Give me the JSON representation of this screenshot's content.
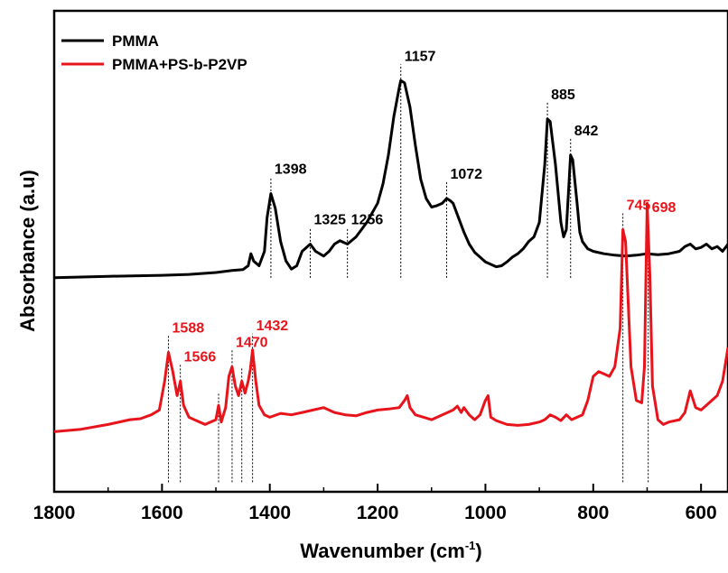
{
  "chart_data": {
    "type": "line",
    "title": "",
    "xlabel": "Wavenumber (cm",
    "xlabel_sup": "-1",
    "xlabel_close": ")",
    "ylabel": "Absorbance (a.u)",
    "xlim": [
      1800,
      550
    ],
    "x_reversed": true,
    "ylim": [
      0,
      1
    ],
    "y_ticks_labeled": false,
    "legend_position": "top-left",
    "x_ticks": [
      "1800",
      "1600",
      "1400",
      "1200",
      "1000",
      "800",
      "600"
    ],
    "x_tick_values": [
      1800,
      1600,
      1400,
      1200,
      1000,
      800,
      600
    ],
    "series": [
      {
        "name": "PMMA",
        "color": "#000000",
        "x": [
          1800,
          1700,
          1600,
          1550,
          1500,
          1470,
          1450,
          1440,
          1435,
          1430,
          1420,
          1410,
          1405,
          1398,
          1390,
          1380,
          1370,
          1360,
          1350,
          1340,
          1325,
          1315,
          1300,
          1290,
          1280,
          1270,
          1256,
          1240,
          1220,
          1200,
          1190,
          1180,
          1170,
          1160,
          1157,
          1150,
          1140,
          1130,
          1120,
          1110,
          1100,
          1090,
          1080,
          1072,
          1065,
          1060,
          1050,
          1040,
          1030,
          1020,
          1000,
          980,
          970,
          960,
          950,
          940,
          930,
          920,
          910,
          900,
          890,
          885,
          880,
          870,
          860,
          855,
          850,
          845,
          842,
          838,
          830,
          825,
          820,
          810,
          800,
          780,
          760,
          740,
          720,
          700,
          680,
          660,
          640,
          630,
          620,
          610,
          600,
          590,
          580,
          570,
          560,
          550
        ],
        "y": [
          0.445,
          0.448,
          0.45,
          0.452,
          0.456,
          0.46,
          0.462,
          0.47,
          0.495,
          0.48,
          0.47,
          0.5,
          0.57,
          0.62,
          0.59,
          0.52,
          0.48,
          0.463,
          0.47,
          0.5,
          0.515,
          0.5,
          0.49,
          0.5,
          0.515,
          0.522,
          0.515,
          0.53,
          0.56,
          0.6,
          0.64,
          0.7,
          0.78,
          0.84,
          0.855,
          0.85,
          0.8,
          0.72,
          0.65,
          0.61,
          0.592,
          0.595,
          0.6,
          0.61,
          0.605,
          0.6,
          0.57,
          0.54,
          0.515,
          0.498,
          0.478,
          0.468,
          0.47,
          0.478,
          0.488,
          0.495,
          0.505,
          0.52,
          0.53,
          0.56,
          0.68,
          0.775,
          0.77,
          0.68,
          0.56,
          0.53,
          0.545,
          0.64,
          0.7,
          0.69,
          0.6,
          0.54,
          0.52,
          0.505,
          0.5,
          0.495,
          0.492,
          0.49,
          0.492,
          0.495,
          0.493,
          0.495,
          0.5,
          0.51,
          0.515,
          0.505,
          0.508,
          0.515,
          0.505,
          0.51,
          0.5,
          0.515
        ]
      },
      {
        "name": "PMMA+PS-b-P2VP",
        "color": "#e8141c",
        "x": [
          1800,
          1750,
          1700,
          1660,
          1640,
          1620,
          1605,
          1595,
          1588,
          1580,
          1572,
          1566,
          1560,
          1550,
          1540,
          1520,
          1500,
          1495,
          1490,
          1482,
          1476,
          1470,
          1464,
          1458,
          1452,
          1446,
          1440,
          1436,
          1432,
          1426,
          1420,
          1410,
          1400,
          1380,
          1360,
          1340,
          1320,
          1300,
          1280,
          1260,
          1240,
          1220,
          1200,
          1180,
          1160,
          1150,
          1145,
          1140,
          1130,
          1100,
          1080,
          1060,
          1052,
          1045,
          1040,
          1030,
          1020,
          1010,
          1000,
          995,
          990,
          980,
          960,
          940,
          920,
          900,
          890,
          880,
          870,
          860,
          850,
          840,
          830,
          820,
          810,
          800,
          790,
          780,
          770,
          760,
          750,
          745,
          740,
          730,
          720,
          710,
          705,
          700,
          695,
          690,
          680,
          670,
          660,
          640,
          630,
          620,
          610,
          600,
          590,
          580,
          570,
          560,
          550
        ],
        "y": [
          0.125,
          0.13,
          0.14,
          0.15,
          0.152,
          0.16,
          0.17,
          0.23,
          0.29,
          0.25,
          0.2,
          0.23,
          0.18,
          0.155,
          0.15,
          0.14,
          0.15,
          0.18,
          0.145,
          0.175,
          0.24,
          0.26,
          0.22,
          0.2,
          0.23,
          0.205,
          0.23,
          0.255,
          0.295,
          0.23,
          0.18,
          0.16,
          0.155,
          0.163,
          0.16,
          0.165,
          0.17,
          0.175,
          0.165,
          0.16,
          0.158,
          0.165,
          0.17,
          0.172,
          0.175,
          0.19,
          0.2,
          0.175,
          0.16,
          0.15,
          0.16,
          0.17,
          0.178,
          0.165,
          0.175,
          0.16,
          0.15,
          0.16,
          0.19,
          0.2,
          0.155,
          0.148,
          0.14,
          0.138,
          0.14,
          0.145,
          0.15,
          0.16,
          0.155,
          0.148,
          0.16,
          0.15,
          0.155,
          0.16,
          0.19,
          0.24,
          0.25,
          0.245,
          0.24,
          0.26,
          0.34,
          0.545,
          0.52,
          0.26,
          0.19,
          0.185,
          0.26,
          0.6,
          0.45,
          0.22,
          0.15,
          0.14,
          0.145,
          0.15,
          0.165,
          0.21,
          0.175,
          0.17,
          0.18,
          0.19,
          0.2,
          0.23,
          0.3
        ]
      }
    ],
    "peak_labels": [
      {
        "text": "1398",
        "x": 1398,
        "color": "#000000",
        "series": "PMMA"
      },
      {
        "text": "1325",
        "x": 1325,
        "color": "#000000",
        "series": "PMMA"
      },
      {
        "text": "1256",
        "x": 1256,
        "color": "#000000",
        "series": "PMMA"
      },
      {
        "text": "1157",
        "x": 1157,
        "color": "#000000",
        "series": "PMMA"
      },
      {
        "text": "1072",
        "x": 1072,
        "color": "#000000",
        "series": "PMMA"
      },
      {
        "text": "885",
        "x": 885,
        "color": "#000000",
        "series": "PMMA"
      },
      {
        "text": "842",
        "x": 842,
        "color": "#000000",
        "series": "PMMA"
      },
      {
        "text": "1588",
        "x": 1588,
        "color": "#e8141c",
        "series": "PMMA+PS-b-P2VP"
      },
      {
        "text": "1566",
        "x": 1566,
        "color": "#e8141c",
        "series": "PMMA+PS-b-P2VP"
      },
      {
        "text": "1470",
        "x": 1470,
        "color": "#e8141c",
        "series": "PMMA+PS-b-P2VP"
      },
      {
        "text": "1432",
        "x": 1432,
        "color": "#e8141c",
        "series": "PMMA+PS-b-P2VP"
      },
      {
        "text": "745",
        "x": 745,
        "color": "#e8141c",
        "series": "PMMA+PS-b-P2VP"
      },
      {
        "text": "698",
        "x": 698,
        "color": "#e8141c",
        "series": "PMMA+PS-b-P2VP"
      }
    ],
    "unlabeled_markers": [
      1495,
      1452
    ]
  }
}
